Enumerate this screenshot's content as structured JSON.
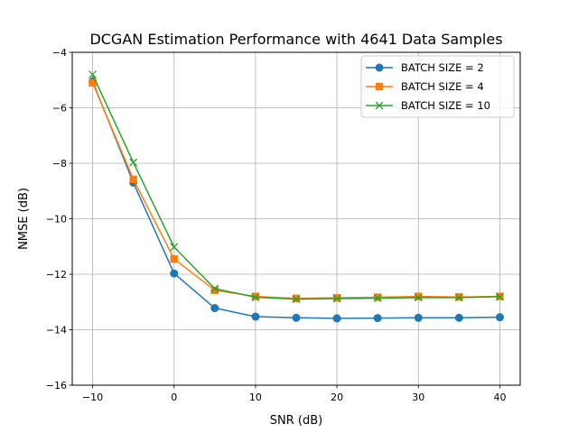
{
  "chart_data": {
    "type": "line",
    "title": "DCGAN Estimation Performance with 4641 Data Samples",
    "xlabel": "SNR (dB)",
    "ylabel": "NMSE (dB)",
    "x": [
      -10,
      -5,
      0,
      5,
      10,
      15,
      20,
      25,
      30,
      35,
      40
    ],
    "xlim": [
      -12.5,
      42.5
    ],
    "ylim": [
      -16,
      -4
    ],
    "xticks": [
      -10,
      0,
      10,
      20,
      30,
      40
    ],
    "yticks": [
      -16,
      -14,
      -12,
      -10,
      -8,
      -6,
      -4
    ],
    "xtick_labels": [
      "−10",
      "0",
      "10",
      "20",
      "30",
      "40"
    ],
    "ytick_labels": [
      "−16",
      "−14",
      "−12",
      "−10",
      "−8",
      "−6",
      "−4"
    ],
    "grid": true,
    "legend_position": "top-right",
    "series": [
      {
        "name": "BATCH SIZE = 2",
        "color": "#1f77b4",
        "marker": "circle",
        "values": [
          -5.05,
          -8.7,
          -11.97,
          -13.22,
          -13.53,
          -13.57,
          -13.59,
          -13.58,
          -13.57,
          -13.57,
          -13.55
        ]
      },
      {
        "name": "BATCH SIZE = 4",
        "color": "#ff7f0e",
        "marker": "square",
        "values": [
          -5.1,
          -8.58,
          -11.45,
          -12.58,
          -12.8,
          -12.87,
          -12.85,
          -12.83,
          -12.8,
          -12.82,
          -12.8
        ]
      },
      {
        "name": "BATCH SIZE = 10",
        "color": "#2ca02c",
        "marker": "x",
        "values": [
          -4.8,
          -7.97,
          -11.02,
          -12.52,
          -12.83,
          -12.9,
          -12.88,
          -12.86,
          -12.84,
          -12.84,
          -12.81
        ]
      }
    ]
  }
}
